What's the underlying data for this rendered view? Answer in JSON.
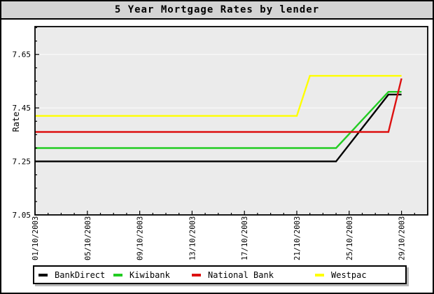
{
  "header": {
    "title": "5 Year Mortgage Rates by lender"
  },
  "colors": {
    "titlebar_bg": "#d4d4d4",
    "plot_bg": "#ebebeb",
    "gridline": "#f7f7f7",
    "axis": "#000000",
    "bankdirect": "#000000",
    "kiwibank": "#22cc22",
    "national_bank": "#dd1111",
    "westpac": "#ffff00"
  },
  "chart_data": {
    "type": "line",
    "title": "5 Year Mortgage Rates by lender",
    "xlabel": "",
    "ylabel": "Rate",
    "legend_position": "bottom",
    "grid": "horizontal-major",
    "x_axis": {
      "unit": "day of October 2003",
      "range": [
        1,
        31
      ],
      "major_tick_days": [
        1,
        5,
        9,
        13,
        17,
        21,
        25,
        29
      ],
      "tick_labels": [
        "01/10/2003",
        "05/10/2003",
        "09/10/2003",
        "13/10/2003",
        "17/10/2003",
        "21/10/2003",
        "25/10/2003",
        "29/10/2003"
      ],
      "minor_step_days": 1
    },
    "y_axis": {
      "range": [
        7.05,
        7.754
      ],
      "major_ticks": [
        7.05,
        7.25,
        7.45,
        7.65
      ],
      "tick_labels": [
        "7.05",
        "7.25",
        "7.45",
        "7.65"
      ],
      "minor_step": 0.05
    },
    "series": [
      {
        "name": "BankDirect",
        "color": "#000000",
        "points": [
          [
            1,
            7.25
          ],
          [
            24,
            7.25
          ],
          [
            28,
            7.5
          ],
          [
            29,
            7.5
          ]
        ]
      },
      {
        "name": "Kiwibank",
        "color": "#22cc22",
        "points": [
          [
            1,
            7.3
          ],
          [
            24,
            7.3
          ],
          [
            28,
            7.51
          ],
          [
            29,
            7.51
          ]
        ]
      },
      {
        "name": "National Bank",
        "color": "#dd1111",
        "points": [
          [
            1,
            7.36
          ],
          [
            28,
            7.36
          ],
          [
            29,
            7.56
          ]
        ]
      },
      {
        "name": "Westpac",
        "color": "#ffff00",
        "points": [
          [
            1,
            7.42
          ],
          [
            21,
            7.42
          ],
          [
            22,
            7.57
          ],
          [
            29,
            7.57
          ]
        ]
      }
    ]
  },
  "legend": {
    "items": [
      {
        "label": "BankDirect"
      },
      {
        "label": "Kiwibank"
      },
      {
        "label": "National Bank"
      },
      {
        "label": "Westpac"
      }
    ]
  }
}
